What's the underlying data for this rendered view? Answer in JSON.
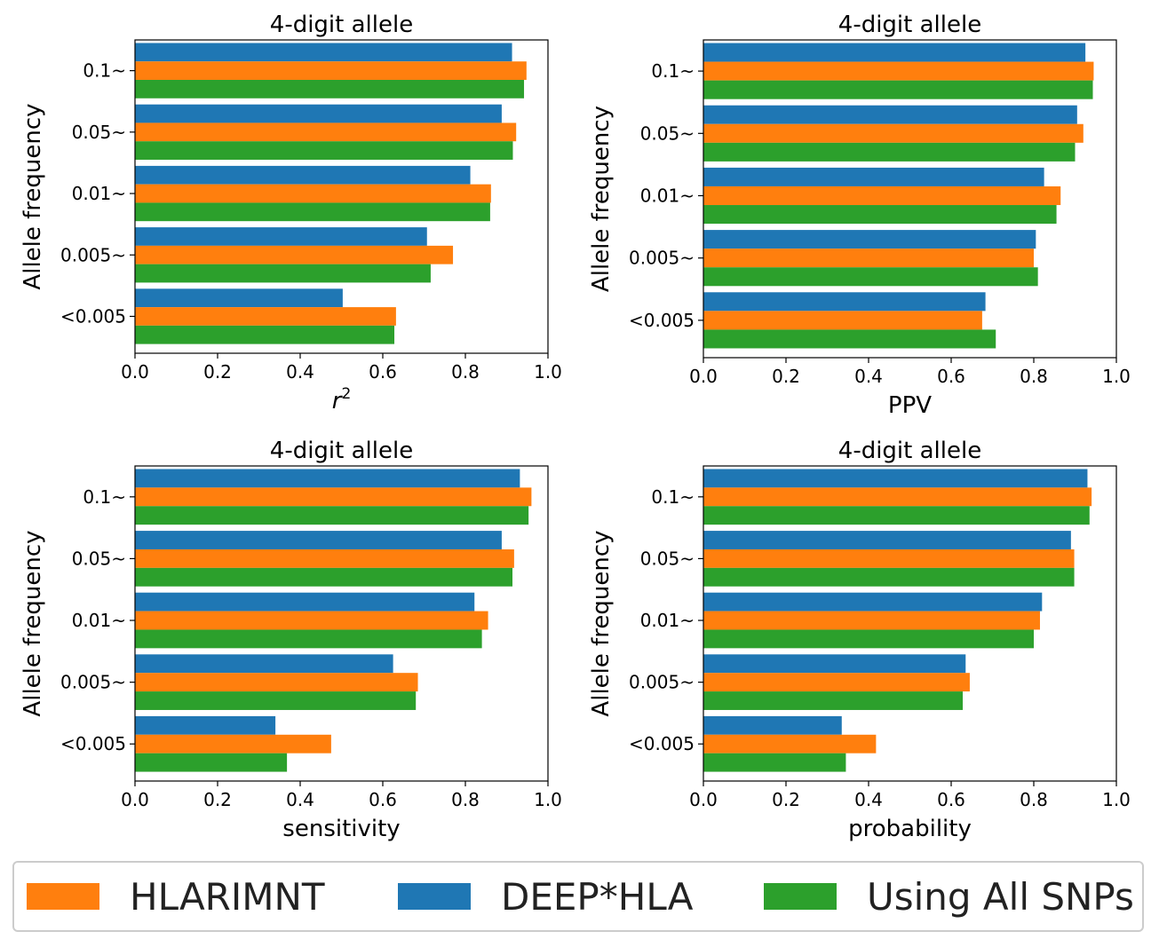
{
  "colors": {
    "HLARIMNT": "#ff7f0e",
    "DEEP*HLA": "#1f77b4",
    "Using All SNPs": "#2ca02c"
  },
  "chart_data": [
    {
      "type": "bar",
      "orientation": "horizontal",
      "title": "4-digit allele",
      "xlabel": "r",
      "xlabel_superscript": "2",
      "ylabel": "Allele frequency",
      "categories": [
        "0.1~",
        "0.05~",
        "0.01~",
        "0.005~",
        "<0.005"
      ],
      "xlim": [
        0,
        1.0
      ],
      "xticks": [
        "0.0",
        "0.2",
        "0.4",
        "0.6",
        "0.8",
        "1.0"
      ],
      "series": [
        {
          "name": "DEEP*HLA",
          "values": [
            0.913,
            0.888,
            0.812,
            0.707,
            0.503
          ]
        },
        {
          "name": "HLARIMNT",
          "values": [
            0.948,
            0.923,
            0.862,
            0.77,
            0.632
          ]
        },
        {
          "name": "Using All SNPs",
          "values": [
            0.942,
            0.915,
            0.86,
            0.716,
            0.628
          ]
        }
      ]
    },
    {
      "type": "bar",
      "orientation": "horizontal",
      "title": "4-digit allele",
      "xlabel": "PPV",
      "ylabel": "Allele frequency",
      "categories": [
        "0.1~",
        "0.05~",
        "0.01~",
        "0.005~",
        "<0.005"
      ],
      "xlim": [
        0,
        1.0
      ],
      "xticks": [
        "0.0",
        "0.2",
        "0.4",
        "0.6",
        "0.8",
        "1.0"
      ],
      "series": [
        {
          "name": "DEEP*HLA",
          "values": [
            0.925,
            0.905,
            0.825,
            0.805,
            0.683
          ]
        },
        {
          "name": "HLARIMNT",
          "values": [
            0.945,
            0.92,
            0.865,
            0.8,
            0.675
          ]
        },
        {
          "name": "Using All SNPs",
          "values": [
            0.943,
            0.9,
            0.855,
            0.81,
            0.708
          ]
        }
      ]
    },
    {
      "type": "bar",
      "orientation": "horizontal",
      "title": "4-digit allele",
      "xlabel": "sensitivity",
      "ylabel": "Allele frequency",
      "categories": [
        "0.1~",
        "0.05~",
        "0.01~",
        "0.005~",
        "<0.005"
      ],
      "xlim": [
        0,
        1.0
      ],
      "xticks": [
        "0.0",
        "0.2",
        "0.4",
        "0.6",
        "0.8",
        "1.0"
      ],
      "series": [
        {
          "name": "DEEP*HLA",
          "values": [
            0.932,
            0.888,
            0.822,
            0.625,
            0.34
          ]
        },
        {
          "name": "HLARIMNT",
          "values": [
            0.96,
            0.918,
            0.855,
            0.685,
            0.475
          ]
        },
        {
          "name": "Using All SNPs",
          "values": [
            0.953,
            0.914,
            0.84,
            0.68,
            0.368
          ]
        }
      ]
    },
    {
      "type": "bar",
      "orientation": "horizontal",
      "title": "4-digit allele",
      "xlabel": "probability",
      "ylabel": "Allele frequency",
      "categories": [
        "0.1~",
        "0.05~",
        "0.01~",
        "0.005~",
        "<0.005"
      ],
      "xlim": [
        0,
        1.0
      ],
      "xticks": [
        "0.0",
        "0.2",
        "0.4",
        "0.6",
        "0.8",
        "1.0"
      ],
      "series": [
        {
          "name": "DEEP*HLA",
          "values": [
            0.93,
            0.89,
            0.82,
            0.635,
            0.335
          ]
        },
        {
          "name": "HLARIMNT",
          "values": [
            0.94,
            0.898,
            0.815,
            0.645,
            0.418
          ]
        },
        {
          "name": "Using All SNPs",
          "values": [
            0.935,
            0.898,
            0.8,
            0.628,
            0.345
          ]
        }
      ]
    }
  ],
  "legend": {
    "items": [
      {
        "label": "HLARIMNT",
        "color": "#ff7f0e"
      },
      {
        "label": "DEEP*HLA",
        "color": "#1f77b4"
      },
      {
        "label": "Using All SNPs",
        "color": "#2ca02c"
      }
    ]
  }
}
